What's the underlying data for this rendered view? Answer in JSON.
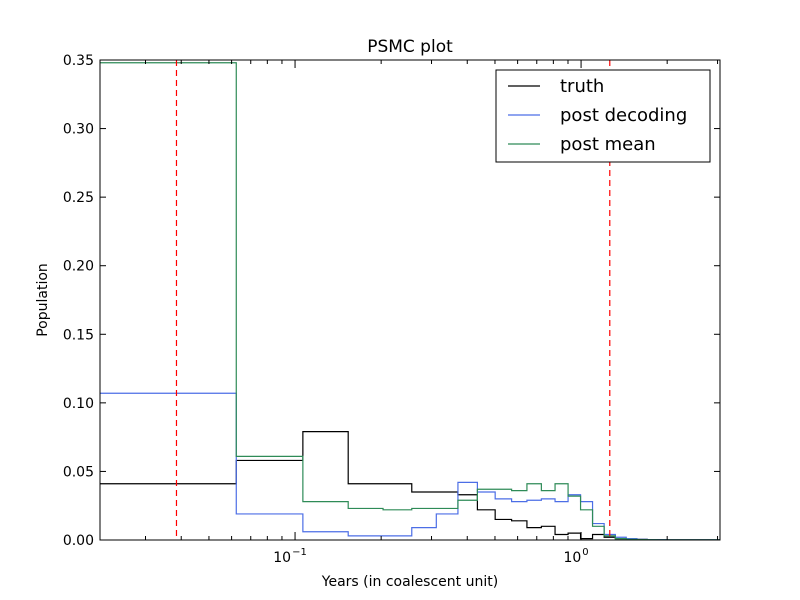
{
  "chart_data": {
    "type": "line",
    "title": "PSMC plot",
    "xlabel": "Years (in coalescent unit)",
    "ylabel": "Population",
    "x_scale": "log",
    "xlim": [
      0.0208,
      3.06
    ],
    "ylim": [
      0,
      0.35
    ],
    "grid": false,
    "legend_position": "top-right",
    "y_ticks": [
      0.0,
      0.05,
      0.1,
      0.15,
      0.2,
      0.25,
      0.3,
      0.35
    ],
    "y_tick_labels": [
      "0.00",
      "0.05",
      "0.10",
      "0.15",
      "0.20",
      "0.25",
      "0.30",
      "0.35"
    ],
    "x_ticks": [
      0.1,
      1.0
    ],
    "x_tick_labels": [
      {
        "base": "10",
        "exp": "−1"
      },
      {
        "base": "10",
        "exp": "0"
      }
    ],
    "vlines": [
      {
        "x": 0.0385,
        "color": "#ff0000",
        "style": "dashed"
      },
      {
        "x": 1.26,
        "color": "#ff0000",
        "style": "dashed"
      }
    ],
    "step_edges": [
      0.0208,
      0.0623,
      0.1065,
      0.1534,
      0.2031,
      0.2559,
      0.3118,
      0.3711,
      0.434,
      0.5008,
      0.5716,
      0.6467,
      0.7264,
      0.811,
      0.9007,
      0.9959,
      1.0968,
      1.2041,
      1.3178,
      1.4385,
      1.5666,
      1.7025,
      1.8467,
      2.0,
      3.06
    ],
    "series": [
      {
        "name": "truth",
        "color": "#000000",
        "values": [
          0.041,
          0.058,
          0.079,
          0.041,
          0.041,
          0.035,
          0.035,
          0.033,
          0.022,
          0.015,
          0.014,
          0.009,
          0.01,
          0.004,
          0.005,
          0.001,
          0.004,
          0.002,
          0.001,
          0.001,
          0.0005,
          0.0003,
          0.0002,
          0.0001
        ]
      },
      {
        "name": "post decoding",
        "color": "#4c6ee6",
        "values": [
          0.107,
          0.019,
          0.006,
          0.003,
          0.003,
          0.009,
          0.019,
          0.042,
          0.035,
          0.03,
          0.028,
          0.029,
          0.03,
          0.028,
          0.033,
          0.028,
          0.012,
          0.004,
          0.002,
          0.001,
          0.0005,
          0.0003,
          0.0002,
          0.0001
        ]
      },
      {
        "name": "post mean",
        "color": "#2e8b57",
        "values": [
          0.348,
          0.061,
          0.028,
          0.023,
          0.022,
          0.023,
          0.023,
          0.029,
          0.037,
          0.037,
          0.036,
          0.041,
          0.036,
          0.041,
          0.032,
          0.022,
          0.01,
          0.003,
          0.001,
          0.0005,
          0.0003,
          0.0002,
          0.0001,
          0.0001
        ]
      }
    ]
  }
}
